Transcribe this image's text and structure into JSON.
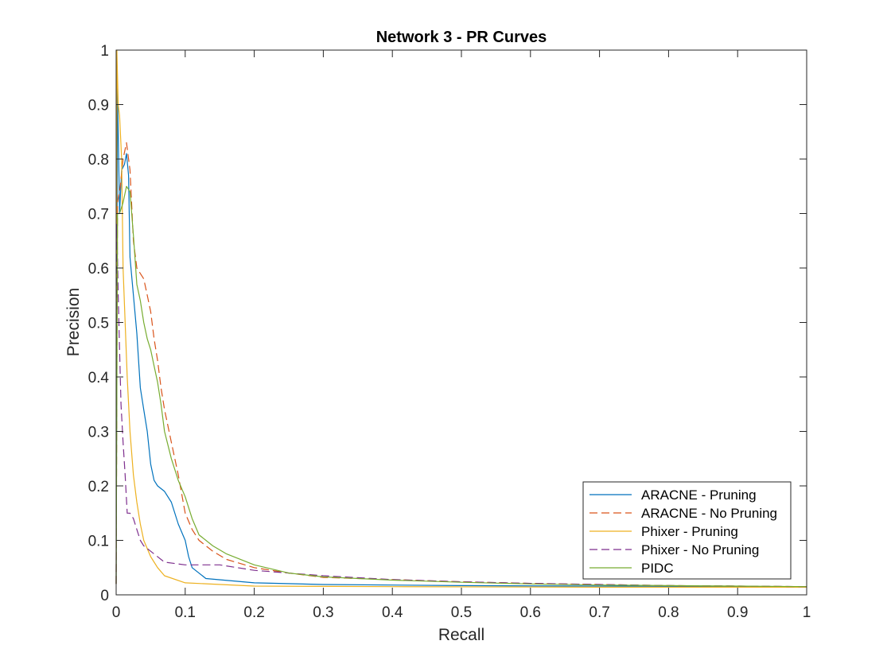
{
  "chart_data": {
    "type": "line",
    "title": "Network 3 - PR Curves",
    "xlabel": "Recall",
    "ylabel": "Precision",
    "xlim": [
      0,
      1
    ],
    "ylim": [
      0,
      1
    ],
    "xticks": [
      "0",
      "0.1",
      "0.2",
      "0.3",
      "0.4",
      "0.5",
      "0.6",
      "0.7",
      "0.8",
      "0.9",
      "1"
    ],
    "yticks": [
      "0",
      "0.1",
      "0.2",
      "0.3",
      "0.4",
      "0.5",
      "0.6",
      "0.7",
      "0.8",
      "0.9",
      "1"
    ],
    "grid": false,
    "legend_position": "lower-right",
    "series": [
      {
        "name": "ARACNE - Pruning",
        "color": "#0072BD",
        "dash": "solid",
        "points": [
          [
            0,
            0.02
          ],
          [
            0.002,
            0.93
          ],
          [
            0.005,
            0.7
          ],
          [
            0.008,
            0.78
          ],
          [
            0.012,
            0.79
          ],
          [
            0.015,
            0.81
          ],
          [
            0.018,
            0.77
          ],
          [
            0.02,
            0.62
          ],
          [
            0.025,
            0.55
          ],
          [
            0.03,
            0.48
          ],
          [
            0.035,
            0.38
          ],
          [
            0.04,
            0.34
          ],
          [
            0.045,
            0.3
          ],
          [
            0.05,
            0.24
          ],
          [
            0.055,
            0.21
          ],
          [
            0.06,
            0.2
          ],
          [
            0.07,
            0.19
          ],
          [
            0.08,
            0.17
          ],
          [
            0.09,
            0.13
          ],
          [
            0.1,
            0.1
          ],
          [
            0.105,
            0.07
          ],
          [
            0.11,
            0.05
          ],
          [
            0.13,
            0.03
          ],
          [
            0.2,
            0.022
          ],
          [
            0.3,
            0.019
          ],
          [
            0.5,
            0.017
          ],
          [
            0.7,
            0.016
          ],
          [
            0.9,
            0.015
          ],
          [
            1.0,
            0.015
          ]
        ]
      },
      {
        "name": "ARACNE - No Pruning",
        "color": "#D95319",
        "dash": "dashed",
        "points": [
          [
            0,
            0.02
          ],
          [
            0.002,
            0.72
          ],
          [
            0.006,
            0.75
          ],
          [
            0.01,
            0.8
          ],
          [
            0.015,
            0.83
          ],
          [
            0.02,
            0.78
          ],
          [
            0.025,
            0.65
          ],
          [
            0.03,
            0.6
          ],
          [
            0.035,
            0.59
          ],
          [
            0.04,
            0.58
          ],
          [
            0.045,
            0.55
          ],
          [
            0.05,
            0.52
          ],
          [
            0.055,
            0.47
          ],
          [
            0.06,
            0.43
          ],
          [
            0.065,
            0.38
          ],
          [
            0.07,
            0.34
          ],
          [
            0.08,
            0.28
          ],
          [
            0.09,
            0.22
          ],
          [
            0.1,
            0.15
          ],
          [
            0.11,
            0.12
          ],
          [
            0.12,
            0.1
          ],
          [
            0.14,
            0.08
          ],
          [
            0.16,
            0.065
          ],
          [
            0.2,
            0.05
          ],
          [
            0.25,
            0.04
          ],
          [
            0.3,
            0.032
          ],
          [
            0.4,
            0.028
          ],
          [
            0.5,
            0.024
          ],
          [
            0.6,
            0.021
          ],
          [
            0.7,
            0.019
          ],
          [
            0.8,
            0.017
          ],
          [
            0.9,
            0.016
          ],
          [
            1.0,
            0.015
          ]
        ]
      },
      {
        "name": "Phixer - Pruning",
        "color": "#EDB120",
        "dash": "solid",
        "points": [
          [
            0,
            0.02
          ],
          [
            0.001,
            1.0
          ],
          [
            0.003,
            0.9
          ],
          [
            0.005,
            0.88
          ],
          [
            0.008,
            0.8
          ],
          [
            0.01,
            0.6
          ],
          [
            0.013,
            0.5
          ],
          [
            0.016,
            0.4
          ],
          [
            0.02,
            0.3
          ],
          [
            0.025,
            0.22
          ],
          [
            0.03,
            0.17
          ],
          [
            0.035,
            0.13
          ],
          [
            0.04,
            0.1
          ],
          [
            0.05,
            0.07
          ],
          [
            0.06,
            0.05
          ],
          [
            0.07,
            0.035
          ],
          [
            0.1,
            0.022
          ],
          [
            0.2,
            0.016
          ],
          [
            0.4,
            0.015
          ],
          [
            0.7,
            0.014
          ],
          [
            1.0,
            0.014
          ]
        ]
      },
      {
        "name": "Phixer - No Pruning",
        "color": "#7E2F8E",
        "dash": "dashed",
        "points": [
          [
            0,
            0.02
          ],
          [
            0.001,
            0.68
          ],
          [
            0.003,
            0.55
          ],
          [
            0.005,
            0.45
          ],
          [
            0.007,
            0.35
          ],
          [
            0.01,
            0.28
          ],
          [
            0.013,
            0.22
          ],
          [
            0.016,
            0.15
          ],
          [
            0.02,
            0.15
          ],
          [
            0.025,
            0.14
          ],
          [
            0.03,
            0.12
          ],
          [
            0.035,
            0.1
          ],
          [
            0.04,
            0.09
          ],
          [
            0.05,
            0.08
          ],
          [
            0.07,
            0.06
          ],
          [
            0.1,
            0.055
          ],
          [
            0.15,
            0.055
          ],
          [
            0.2,
            0.045
          ],
          [
            0.3,
            0.035
          ],
          [
            0.4,
            0.028
          ],
          [
            0.5,
            0.024
          ],
          [
            0.6,
            0.021
          ],
          [
            0.7,
            0.019
          ],
          [
            0.8,
            0.017
          ],
          [
            0.9,
            0.016
          ],
          [
            1.0,
            0.015
          ]
        ]
      },
      {
        "name": "PIDC",
        "color": "#77AC30",
        "dash": "solid",
        "points": [
          [
            0,
            0.02
          ],
          [
            0.002,
            0.7
          ],
          [
            0.005,
            0.7
          ],
          [
            0.01,
            0.72
          ],
          [
            0.015,
            0.75
          ],
          [
            0.02,
            0.74
          ],
          [
            0.025,
            0.66
          ],
          [
            0.03,
            0.57
          ],
          [
            0.035,
            0.54
          ],
          [
            0.04,
            0.5
          ],
          [
            0.045,
            0.47
          ],
          [
            0.05,
            0.45
          ],
          [
            0.055,
            0.42
          ],
          [
            0.06,
            0.39
          ],
          [
            0.065,
            0.35
          ],
          [
            0.07,
            0.3
          ],
          [
            0.08,
            0.25
          ],
          [
            0.09,
            0.21
          ],
          [
            0.1,
            0.18
          ],
          [
            0.11,
            0.14
          ],
          [
            0.12,
            0.11
          ],
          [
            0.14,
            0.09
          ],
          [
            0.16,
            0.075
          ],
          [
            0.2,
            0.055
          ],
          [
            0.25,
            0.04
          ],
          [
            0.3,
            0.033
          ],
          [
            0.4,
            0.027
          ],
          [
            0.5,
            0.023
          ],
          [
            0.6,
            0.02
          ],
          [
            0.7,
            0.018
          ],
          [
            0.8,
            0.017
          ],
          [
            0.9,
            0.016
          ],
          [
            1.0,
            0.015
          ]
        ]
      }
    ]
  }
}
